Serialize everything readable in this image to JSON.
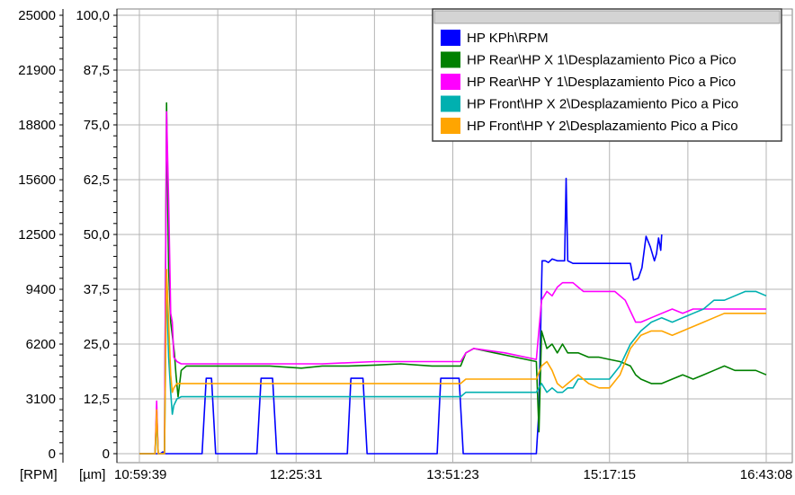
{
  "chart_data": {
    "type": "line",
    "title": "",
    "xlabel": "",
    "x_ticks": [
      "10:59:39",
      "12:25:31",
      "13:51:23",
      "15:17:15",
      "16:43:08"
    ],
    "x_range_fraction": [
      0,
      1
    ],
    "y_axes": [
      {
        "id": "rpm",
        "unit": "[RPM]",
        "ticks": [
          "25000",
          "21900",
          "18800",
          "15600",
          "12500",
          "9400",
          "6200",
          "3100",
          "0"
        ],
        "range": [
          0,
          25000
        ]
      },
      {
        "id": "um",
        "unit": "[µm]",
        "ticks": [
          "100,0",
          "87,5",
          "75,0",
          "62,5",
          "50,0",
          "37,5",
          "25,0",
          "12,5",
          "0"
        ],
        "range": [
          0,
          100
        ]
      }
    ],
    "grid": true,
    "legend_position": "top-right",
    "series": [
      {
        "name": "HP KPh\\RPM",
        "color": "#0000ff",
        "axis": "rpm",
        "points": [
          [
            0.0,
            0
          ],
          [
            0.04,
            0
          ],
          [
            0.045,
            100
          ],
          [
            0.05,
            0
          ],
          [
            0.12,
            0
          ],
          [
            0.128,
            4300
          ],
          [
            0.138,
            4300
          ],
          [
            0.146,
            0
          ],
          [
            0.225,
            0
          ],
          [
            0.233,
            4300
          ],
          [
            0.255,
            4300
          ],
          [
            0.263,
            0
          ],
          [
            0.398,
            0
          ],
          [
            0.405,
            4300
          ],
          [
            0.428,
            4300
          ],
          [
            0.436,
            0
          ],
          [
            0.57,
            0
          ],
          [
            0.577,
            4300
          ],
          [
            0.612,
            4300
          ],
          [
            0.62,
            0
          ],
          [
            0.76,
            0
          ],
          [
            0.765,
            2500
          ],
          [
            0.771,
            11000
          ],
          [
            0.777,
            11000
          ],
          [
            0.783,
            10900
          ],
          [
            0.79,
            11100
          ],
          [
            0.8,
            11000
          ],
          [
            0.814,
            11000
          ],
          [
            0.817,
            15700
          ],
          [
            0.82,
            11000
          ],
          [
            0.83,
            10850
          ],
          [
            0.86,
            10850
          ],
          [
            0.88,
            10850
          ],
          [
            0.92,
            10850
          ],
          [
            0.94,
            10850
          ],
          [
            0.946,
            9900
          ],
          [
            0.955,
            10000
          ],
          [
            0.962,
            10600
          ],
          [
            0.97,
            12400
          ],
          [
            0.978,
            11800
          ],
          [
            0.986,
            11000
          ],
          [
            0.99,
            11400
          ],
          [
            0.994,
            12300
          ],
          [
            0.998,
            11600
          ],
          [
            1.0,
            12500
          ]
        ]
      },
      {
        "name": "HP Rear\\HP X 1\\Desplazamiento Pico a Pico",
        "color": "#008000",
        "axis": "um",
        "points": [
          [
            0.0,
            0
          ],
          [
            0.03,
            0
          ],
          [
            0.033,
            10
          ],
          [
            0.036,
            0
          ],
          [
            0.048,
            0
          ],
          [
            0.052,
            80
          ],
          [
            0.056,
            42
          ],
          [
            0.06,
            30
          ],
          [
            0.064,
            26
          ],
          [
            0.067,
            23
          ],
          [
            0.07,
            18
          ],
          [
            0.074,
            13
          ],
          [
            0.08,
            19
          ],
          [
            0.09,
            20
          ],
          [
            0.15,
            20
          ],
          [
            0.25,
            20
          ],
          [
            0.31,
            19.5
          ],
          [
            0.35,
            20
          ],
          [
            0.4,
            20
          ],
          [
            0.45,
            20.2
          ],
          [
            0.5,
            20.5
          ],
          [
            0.56,
            20
          ],
          [
            0.615,
            20
          ],
          [
            0.625,
            23
          ],
          [
            0.64,
            24
          ],
          [
            0.68,
            23
          ],
          [
            0.72,
            22
          ],
          [
            0.76,
            21
          ],
          [
            0.765,
            5
          ],
          [
            0.77,
            28
          ],
          [
            0.78,
            24
          ],
          [
            0.79,
            25
          ],
          [
            0.8,
            23
          ],
          [
            0.81,
            25
          ],
          [
            0.82,
            23
          ],
          [
            0.83,
            23
          ],
          [
            0.84,
            23
          ],
          [
            0.86,
            22
          ],
          [
            0.88,
            22
          ],
          [
            0.9,
            21.5
          ],
          [
            0.92,
            21
          ],
          [
            0.94,
            20
          ],
          [
            0.95,
            18
          ],
          [
            0.96,
            17
          ],
          [
            0.98,
            16
          ],
          [
            1.0,
            16
          ],
          [
            1.02,
            17
          ],
          [
            1.04,
            18
          ],
          [
            1.06,
            17
          ],
          [
            1.08,
            18
          ],
          [
            1.1,
            19
          ],
          [
            1.12,
            20
          ],
          [
            1.14,
            19
          ],
          [
            1.16,
            19
          ],
          [
            1.18,
            19
          ],
          [
            1.2,
            18
          ]
        ]
      },
      {
        "name": "HP Rear\\HP Y 1\\Desplazamiento Pico a Pico",
        "color": "#ff00ff",
        "axis": "um",
        "points": [
          [
            0.0,
            0
          ],
          [
            0.03,
            0
          ],
          [
            0.033,
            12
          ],
          [
            0.036,
            0
          ],
          [
            0.048,
            0
          ],
          [
            0.052,
            78
          ],
          [
            0.056,
            58
          ],
          [
            0.06,
            32
          ],
          [
            0.063,
            30
          ],
          [
            0.066,
            22
          ],
          [
            0.072,
            21
          ],
          [
            0.08,
            20.5
          ],
          [
            0.15,
            20.5
          ],
          [
            0.25,
            20.5
          ],
          [
            0.35,
            20.5
          ],
          [
            0.45,
            21
          ],
          [
            0.56,
            21
          ],
          [
            0.615,
            21
          ],
          [
            0.625,
            23
          ],
          [
            0.64,
            24
          ],
          [
            0.7,
            23
          ],
          [
            0.76,
            21.5
          ],
          [
            0.77,
            35
          ],
          [
            0.78,
            37
          ],
          [
            0.79,
            36
          ],
          [
            0.8,
            38
          ],
          [
            0.81,
            39
          ],
          [
            0.82,
            39
          ],
          [
            0.83,
            39
          ],
          [
            0.84,
            38
          ],
          [
            0.85,
            37
          ],
          [
            0.87,
            37
          ],
          [
            0.89,
            37
          ],
          [
            0.91,
            37
          ],
          [
            0.93,
            35
          ],
          [
            0.95,
            30
          ],
          [
            0.96,
            30
          ],
          [
            0.98,
            31
          ],
          [
            1.0,
            32
          ],
          [
            1.02,
            33
          ],
          [
            1.04,
            32
          ],
          [
            1.06,
            33
          ],
          [
            1.08,
            33
          ],
          [
            1.1,
            33
          ],
          [
            1.12,
            33
          ],
          [
            1.14,
            33
          ],
          [
            1.16,
            33
          ],
          [
            1.18,
            33
          ],
          [
            1.2,
            33
          ]
        ]
      },
      {
        "name": "HP Front\\HP X 2\\Desplazamiento Pico a Pico",
        "color": "#00b0b0",
        "axis": "um",
        "points": [
          [
            0.0,
            0
          ],
          [
            0.03,
            0
          ],
          [
            0.033,
            8
          ],
          [
            0.036,
            0
          ],
          [
            0.048,
            0
          ],
          [
            0.052,
            40
          ],
          [
            0.056,
            22
          ],
          [
            0.06,
            14
          ],
          [
            0.063,
            9
          ],
          [
            0.066,
            11
          ],
          [
            0.072,
            12.5
          ],
          [
            0.08,
            13
          ],
          [
            0.15,
            13
          ],
          [
            0.25,
            13
          ],
          [
            0.35,
            13
          ],
          [
            0.45,
            13
          ],
          [
            0.56,
            13
          ],
          [
            0.615,
            13
          ],
          [
            0.625,
            14
          ],
          [
            0.7,
            14
          ],
          [
            0.76,
            14
          ],
          [
            0.77,
            16
          ],
          [
            0.78,
            14
          ],
          [
            0.79,
            15
          ],
          [
            0.8,
            14
          ],
          [
            0.81,
            14
          ],
          [
            0.82,
            15
          ],
          [
            0.83,
            15
          ],
          [
            0.84,
            17
          ],
          [
            0.86,
            17
          ],
          [
            0.88,
            17
          ],
          [
            0.9,
            17
          ],
          [
            0.92,
            20
          ],
          [
            0.94,
            25
          ],
          [
            0.96,
            28
          ],
          [
            0.98,
            30
          ],
          [
            1.0,
            31
          ],
          [
            1.02,
            30
          ],
          [
            1.04,
            31
          ],
          [
            1.06,
            32
          ],
          [
            1.08,
            33
          ],
          [
            1.1,
            35
          ],
          [
            1.12,
            35
          ],
          [
            1.14,
            36
          ],
          [
            1.16,
            37
          ],
          [
            1.18,
            37
          ],
          [
            1.2,
            36
          ]
        ]
      },
      {
        "name": "HP Front\\HP Y 2\\Desplazamiento Pico a Pico",
        "color": "#ffa500",
        "axis": "um",
        "points": [
          [
            0.0,
            0
          ],
          [
            0.03,
            0
          ],
          [
            0.033,
            10
          ],
          [
            0.036,
            0
          ],
          [
            0.048,
            0
          ],
          [
            0.052,
            42
          ],
          [
            0.056,
            30
          ],
          [
            0.06,
            18
          ],
          [
            0.063,
            14
          ],
          [
            0.066,
            15
          ],
          [
            0.072,
            16
          ],
          [
            0.08,
            16
          ],
          [
            0.15,
            16
          ],
          [
            0.25,
            16
          ],
          [
            0.35,
            16
          ],
          [
            0.45,
            16
          ],
          [
            0.56,
            16
          ],
          [
            0.615,
            16
          ],
          [
            0.625,
            17
          ],
          [
            0.7,
            17
          ],
          [
            0.76,
            17
          ],
          [
            0.77,
            20
          ],
          [
            0.78,
            21
          ],
          [
            0.79,
            19
          ],
          [
            0.8,
            16
          ],
          [
            0.81,
            15
          ],
          [
            0.82,
            16
          ],
          [
            0.83,
            17
          ],
          [
            0.84,
            18
          ],
          [
            0.86,
            16
          ],
          [
            0.88,
            15
          ],
          [
            0.9,
            15
          ],
          [
            0.92,
            18
          ],
          [
            0.94,
            24
          ],
          [
            0.96,
            27
          ],
          [
            0.98,
            28
          ],
          [
            1.0,
            28
          ],
          [
            1.02,
            27
          ],
          [
            1.04,
            28
          ],
          [
            1.06,
            29
          ],
          [
            1.08,
            30
          ],
          [
            1.1,
            31
          ],
          [
            1.12,
            32
          ],
          [
            1.14,
            32
          ],
          [
            1.16,
            32
          ],
          [
            1.18,
            32
          ],
          [
            1.2,
            32
          ]
        ]
      }
    ]
  }
}
